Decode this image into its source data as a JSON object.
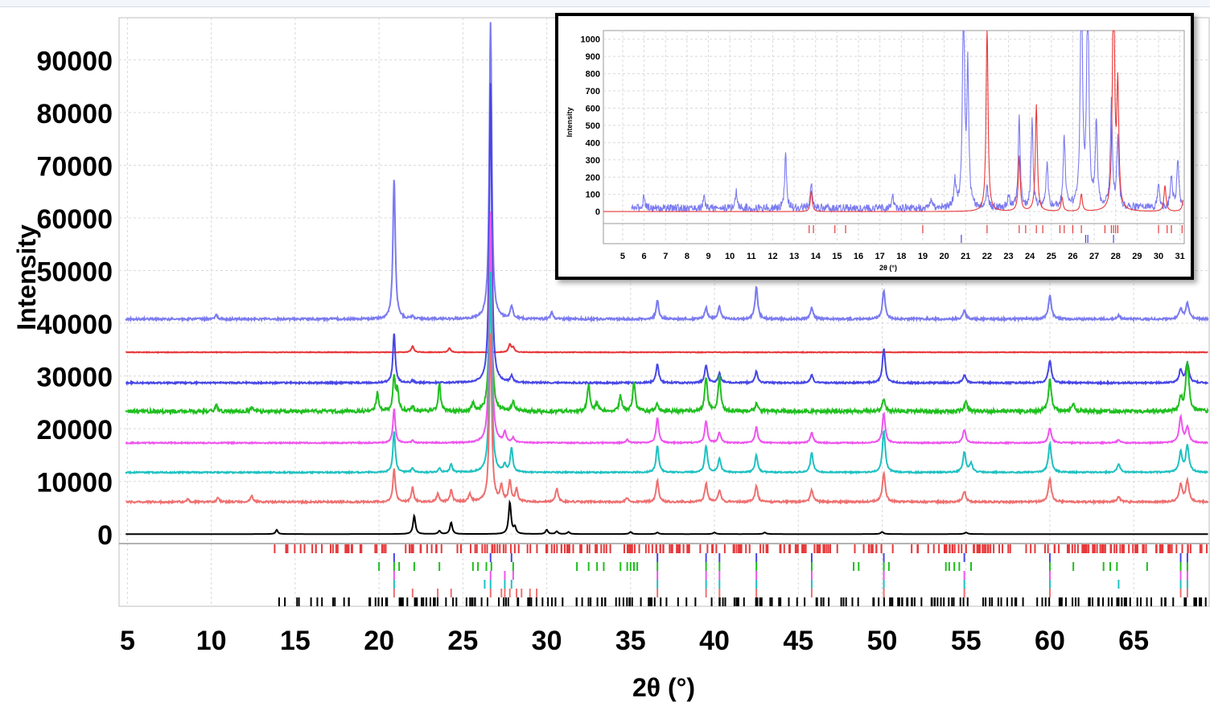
{
  "chart_data": [
    {
      "type": "line",
      "xlabel": "2θ (°)",
      "ylabel": "Intensity",
      "xlim": [
        4.5,
        69.5
      ],
      "ylim": [
        -1500,
        98000
      ],
      "xticks": [
        5,
        10,
        15,
        20,
        25,
        30,
        35,
        40,
        45,
        50,
        55,
        60,
        65
      ],
      "yticks": [
        0,
        10000,
        20000,
        30000,
        40000,
        50000,
        60000,
        70000,
        80000,
        90000
      ],
      "grid": true,
      "colors": {
        "blue_light": "#7b7bf0",
        "red": "#e8383a",
        "blue": "#4646e6",
        "green": "#1fbf1f",
        "magenta": "#ee55ee",
        "cyan": "#1fc1c1",
        "salmon": "#ee7070",
        "black": "#000000"
      },
      "series": [
        {
          "color": "blue_light",
          "baseline": 40800,
          "noise": 400,
          "peaks": [
            [
              10.3,
              800
            ],
            [
              20.9,
              27000
            ],
            [
              22.0,
              500
            ],
            [
              26.65,
              56500
            ],
            [
              27.9,
              2500
            ],
            [
              30.3,
              1200
            ],
            [
              36.6,
              3600
            ],
            [
              39.5,
              2200
            ],
            [
              40.3,
              2400
            ],
            [
              42.5,
              6000
            ],
            [
              45.8,
              2200
            ],
            [
              50.1,
              5300
            ],
            [
              54.9,
              1600
            ],
            [
              60.0,
              4400
            ],
            [
              64.1,
              700
            ],
            [
              67.8,
              2000
            ],
            [
              68.2,
              3000
            ]
          ]
        },
        {
          "color": "red",
          "baseline": 34500,
          "noise": 120,
          "peaks": [
            [
              22.0,
              1200
            ],
            [
              24.2,
              800
            ],
            [
              27.8,
              1500
            ],
            [
              28.0,
              900
            ]
          ]
        },
        {
          "color": "blue",
          "baseline": 28700,
          "noise": 300,
          "peaks": [
            [
              20.9,
              9500
            ],
            [
              22.0,
              400
            ],
            [
              26.65,
              57000
            ],
            [
              27.9,
              1200
            ],
            [
              36.6,
              3600
            ],
            [
              39.5,
              3400
            ],
            [
              40.3,
              1800
            ],
            [
              42.5,
              2200
            ],
            [
              45.8,
              1500
            ],
            [
              50.1,
              6500
            ],
            [
              54.9,
              1500
            ],
            [
              60.0,
              4300
            ],
            [
              67.8,
              2500
            ],
            [
              68.2,
              3700
            ]
          ]
        },
        {
          "color": "green",
          "baseline": 23300,
          "noise": 650,
          "peaks": [
            [
              10.3,
              1200
            ],
            [
              12.4,
              800
            ],
            [
              19.9,
              3500
            ],
            [
              20.9,
              6500
            ],
            [
              21.1,
              4000
            ],
            [
              22.0,
              1000
            ],
            [
              23.6,
              5200
            ],
            [
              25.6,
              1500
            ],
            [
              26.65,
              37000
            ],
            [
              28.0,
              2000
            ],
            [
              32.5,
              5300
            ],
            [
              33.0,
              1500
            ],
            [
              34.4,
              3000
            ],
            [
              35.2,
              5500
            ],
            [
              36.6,
              1500
            ],
            [
              39.5,
              6500
            ],
            [
              40.3,
              6500
            ],
            [
              42.5,
              1500
            ],
            [
              50.1,
              2500
            ],
            [
              55.0,
              1800
            ],
            [
              60.0,
              6000
            ],
            [
              61.4,
              1200
            ],
            [
              67.8,
              2500
            ],
            [
              68.2,
              9500
            ]
          ]
        },
        {
          "color": "magenta",
          "baseline": 17300,
          "noise": 220,
          "peaks": [
            [
              20.9,
              6500
            ],
            [
              22.0,
              400
            ],
            [
              26.65,
              44000
            ],
            [
              27.5,
              2000
            ],
            [
              28.0,
              900
            ],
            [
              34.8,
              600
            ],
            [
              36.6,
              4800
            ],
            [
              39.5,
              4200
            ],
            [
              40.3,
              2000
            ],
            [
              42.5,
              3000
            ],
            [
              45.8,
              2000
            ],
            [
              50.1,
              5600
            ],
            [
              54.9,
              2500
            ],
            [
              60.0,
              2800
            ],
            [
              64.1,
              600
            ],
            [
              67.8,
              4800
            ],
            [
              68.2,
              3000
            ]
          ]
        },
        {
          "color": "cyan",
          "baseline": 11700,
          "noise": 250,
          "peaks": [
            [
              20.9,
              8000
            ],
            [
              22.0,
              800
            ],
            [
              23.6,
              800
            ],
            [
              24.3,
              1500
            ],
            [
              26.65,
              38000
            ],
            [
              27.5,
              1300
            ],
            [
              27.9,
              4500
            ],
            [
              36.6,
              5100
            ],
            [
              39.5,
              5100
            ],
            [
              40.3,
              2700
            ],
            [
              42.5,
              3300
            ],
            [
              45.8,
              3700
            ],
            [
              50.1,
              8000
            ],
            [
              54.9,
              3800
            ],
            [
              55.3,
              1700
            ],
            [
              60.0,
              5500
            ],
            [
              64.1,
              1600
            ],
            [
              67.8,
              3800
            ],
            [
              68.2,
              5000
            ]
          ]
        },
        {
          "color": "salmon",
          "baseline": 6100,
          "noise": 350,
          "peaks": [
            [
              8.6,
              600
            ],
            [
              10.4,
              800
            ],
            [
              12.4,
              1200
            ],
            [
              20.9,
              6500
            ],
            [
              22.0,
              2700
            ],
            [
              23.5,
              1500
            ],
            [
              24.3,
              2200
            ],
            [
              25.4,
              1500
            ],
            [
              26.65,
              32000
            ],
            [
              27.3,
              3000
            ],
            [
              27.8,
              4000
            ],
            [
              28.2,
              2500
            ],
            [
              30.6,
              2500
            ],
            [
              34.8,
              800
            ],
            [
              36.6,
              4000
            ],
            [
              39.5,
              3600
            ],
            [
              40.3,
              2200
            ],
            [
              42.5,
              3000
            ],
            [
              45.8,
              2200
            ],
            [
              50.1,
              5500
            ],
            [
              54.9,
              2000
            ],
            [
              60.0,
              4500
            ],
            [
              64.1,
              900
            ],
            [
              67.8,
              3200
            ],
            [
              68.2,
              4000
            ]
          ]
        },
        {
          "color": "black",
          "baseline": 0,
          "noise": 0,
          "peaks": [
            [
              13.9,
              800
            ],
            [
              22.1,
              3500
            ],
            [
              23.6,
              600
            ],
            [
              24.3,
              2200
            ],
            [
              27.8,
              6000
            ],
            [
              28.1,
              1200
            ],
            [
              30.0,
              800
            ],
            [
              30.6,
              500
            ],
            [
              31.3,
              400
            ],
            [
              35.0,
              400
            ],
            [
              36.6,
              300
            ],
            [
              40.0,
              300
            ],
            [
              43.0,
              300
            ],
            [
              50.0,
              400
            ],
            [
              55.0,
              300
            ]
          ]
        }
      ],
      "tick_rows": [
        {
          "color": "red",
          "count": 280,
          "range": [
            13.7,
            69.4
          ]
        },
        {
          "color": "blue",
          "positions": [
            20.9,
            26.65,
            27.9,
            36.6,
            39.5,
            40.3,
            42.5,
            45.8,
            50.1,
            54.9,
            60.0,
            67.8,
            68.2
          ]
        },
        {
          "color": "green",
          "positions": [
            20.0,
            20.9,
            21.2,
            22.1,
            23.6,
            25.6,
            25.9,
            26.4,
            26.7,
            28.0,
            31.8,
            32.5,
            33.0,
            33.4,
            34.4,
            34.8,
            35.0,
            35.2,
            35.4,
            36.6,
            39.5,
            40.3,
            42.5,
            45.8,
            48.3,
            48.6,
            50.1,
            50.4,
            53.8,
            54.0,
            54.3,
            54.6,
            55.3,
            60.0,
            61.4,
            63.2,
            63.6,
            64.0,
            65.8,
            67.8,
            68.2
          ]
        },
        {
          "color": "magenta",
          "positions": [
            20.9,
            26.65,
            27.5,
            28.0,
            36.6,
            39.5,
            40.3,
            42.5,
            45.8,
            50.1,
            54.9,
            60.0,
            67.8,
            68.2
          ]
        },
        {
          "color": "cyan",
          "positions": [
            20.9,
            26.3,
            26.65,
            27.5,
            27.9,
            36.6,
            39.5,
            40.3,
            42.5,
            45.8,
            50.1,
            54.9,
            60.0,
            64.1,
            67.8,
            68.2
          ]
        },
        {
          "color": "salmon",
          "positions": [
            20.9,
            22.0,
            23.5,
            24.3,
            26.65,
            27.3,
            27.5,
            27.8,
            28.2,
            28.5,
            29.0,
            29.4,
            36.6,
            39.5,
            40.3,
            42.5,
            45.8,
            50.1,
            54.9,
            60.0,
            67.8,
            68.2
          ]
        },
        {
          "color": "black",
          "count": 210,
          "range": [
            13.9,
            69.4
          ]
        }
      ]
    },
    {
      "type": "line",
      "xlabel": "2θ (°)",
      "ylabel": "Intensity",
      "xlim": [
        4.1,
        31.2
      ],
      "ylim": [
        -60,
        1050
      ],
      "xticks": [
        5,
        6,
        7,
        8,
        9,
        10,
        11,
        12,
        13,
        14,
        15,
        16,
        17,
        18,
        19,
        20,
        21,
        22,
        23,
        24,
        25,
        26,
        27,
        28,
        29,
        30,
        31
      ],
      "yticks": [
        0,
        100,
        200,
        300,
        400,
        500,
        600,
        700,
        800,
        900,
        1000
      ],
      "grid": true,
      "series": [
        {
          "color": "blue_light",
          "baseline": 20,
          "noise": 45,
          "start": 5.4,
          "peaks": [
            [
              6.0,
              80
            ],
            [
              8.8,
              60
            ],
            [
              10.3,
              100
            ],
            [
              12.6,
              320
            ],
            [
              13.8,
              150
            ],
            [
              17.6,
              60
            ],
            [
              19.4,
              50
            ],
            [
              20.5,
              160
            ],
            [
              20.9,
              1300
            ],
            [
              21.1,
              800
            ],
            [
              22.0,
              120
            ],
            [
              23.0,
              80
            ],
            [
              23.5,
              520
            ],
            [
              24.1,
              500
            ],
            [
              24.8,
              260
            ],
            [
              25.6,
              420
            ],
            [
              26.4,
              1500
            ],
            [
              26.7,
              1400
            ],
            [
              27.1,
              500
            ],
            [
              27.8,
              600
            ],
            [
              28.1,
              400
            ],
            [
              30.0,
              150
            ],
            [
              30.6,
              180
            ],
            [
              30.9,
              280
            ]
          ]
        },
        {
          "color": "red",
          "baseline": 0,
          "noise": 0,
          "start": 4.1,
          "peaks": [
            [
              13.8,
              120
            ],
            [
              22.0,
              1100
            ],
            [
              23.5,
              320
            ],
            [
              24.3,
              620
            ],
            [
              25.5,
              80
            ],
            [
              26.4,
              100
            ],
            [
              27.9,
              1500
            ],
            [
              28.1,
              700
            ],
            [
              30.3,
              150
            ],
            [
              31.2,
              140
            ]
          ]
        }
      ],
      "tick_rows": [
        {
          "color": "red",
          "positions": [
            13.7,
            13.9,
            14.9,
            15.4,
            19.0,
            22.0,
            23.5,
            23.8,
            24.3,
            24.6,
            25.4,
            25.6,
            26.0,
            26.4,
            27.5,
            27.8,
            27.9,
            28.0,
            28.1,
            30.0,
            30.4,
            30.6,
            31.1
          ]
        },
        {
          "color": "blue",
          "positions": [
            20.8,
            26.6,
            26.7,
            27.9
          ]
        }
      ]
    }
  ]
}
